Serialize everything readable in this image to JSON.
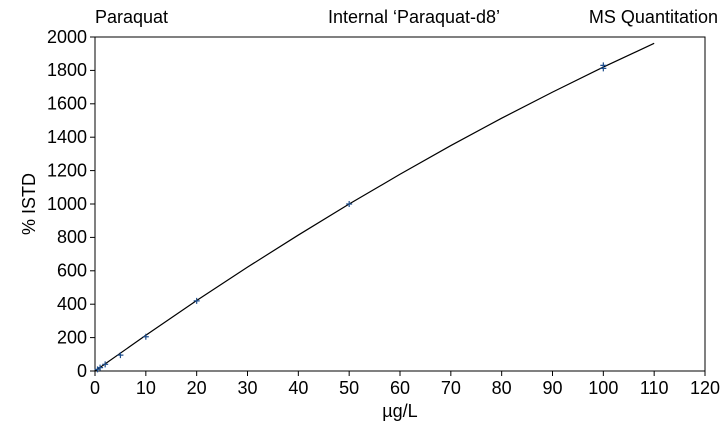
{
  "chart_data": {
    "type": "scatter",
    "annotations": [
      "Paraquat",
      "Internal ‘Paraquat-d8’",
      "MS Quantitation"
    ],
    "x_label": "µg/L",
    "y_label": "% ISTD",
    "xlim": [
      0,
      120
    ],
    "xticks": [
      0,
      10,
      20,
      30,
      40,
      50,
      60,
      70,
      80,
      90,
      100,
      110,
      120
    ],
    "ylim": [
      0,
      2000
    ],
    "yticks": [
      0,
      200,
      400,
      600,
      800,
      1000,
      1200,
      1400,
      1600,
      1800,
      2000
    ],
    "series": [
      {
        "type": "scatter",
        "color": "#1f4e8c",
        "x": [
          0.5,
          1,
          2,
          5,
          10,
          20,
          50,
          100,
          100
        ],
        "values": [
          10,
          20,
          40,
          95,
          205,
          420,
          1000,
          1830,
          1812
        ]
      },
      {
        "type": "line",
        "color": "#000000",
        "x": [
          0,
          10,
          20,
          30,
          40,
          50,
          60,
          70,
          80,
          90,
          100,
          110
        ],
        "values": [
          0,
          214,
          422,
          622,
          814,
          1000,
          1178,
          1350,
          1514,
          1670,
          1820,
          1962
        ]
      }
    ]
  }
}
